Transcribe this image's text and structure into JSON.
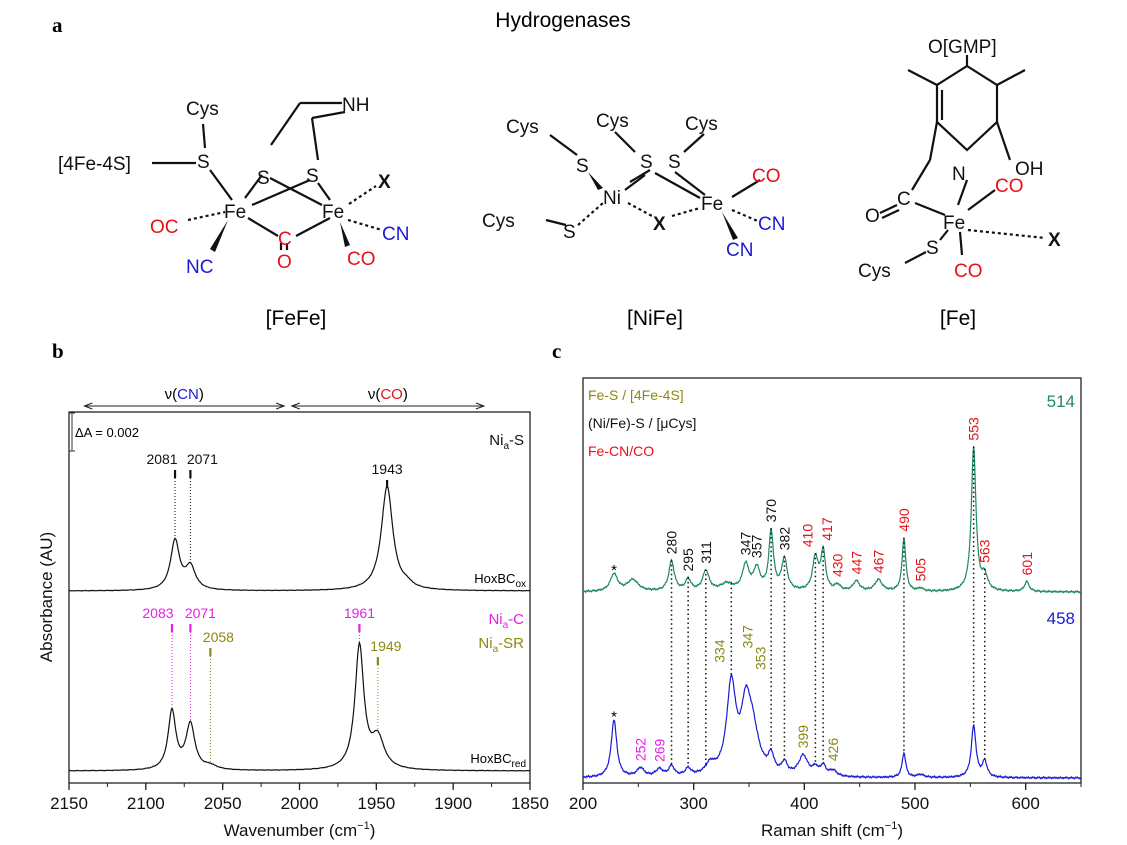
{
  "panel_a": {
    "label": "a",
    "title": "Hydrogenases",
    "fefe": {
      "name": "[FeFe]",
      "atoms": [
        "Cys",
        "S",
        "[4Fe-4S]",
        "S",
        "S",
        "NH",
        "Fe",
        "Fe",
        "OC",
        "NC",
        "C",
        "O",
        "X",
        "CN",
        "CO"
      ]
    },
    "nife": {
      "name": "[NiFe]",
      "atoms": [
        "Cys",
        "Cys",
        "Cys",
        "S",
        "S",
        "S",
        "Ni",
        "Fe",
        "X",
        "Cys",
        "S",
        "CO",
        "CN",
        "CN"
      ]
    },
    "fe": {
      "name": "[Fe]",
      "atoms": [
        "O[GMP]",
        "N",
        "OH",
        "C",
        "O",
        "Fe",
        "CO",
        "X",
        "S",
        "Cys",
        "CO"
      ]
    }
  },
  "chart_data": [
    {
      "panel_label": "b",
      "type": "line",
      "xlabel": "Wavenumber (cm",
      "xlabel_sup": "−1",
      "xlabel_end": ")",
      "ylabel": "Absorbance (AU)",
      "xlim": [
        2150,
        1850
      ],
      "x_reversed": true,
      "xticks": [
        2150,
        2100,
        2050,
        2000,
        1950,
        1900,
        1850
      ],
      "region_labels": [
        {
          "prefix": "ν(",
          "group": "CN",
          "suffix": ")",
          "color": "#1a1ad8",
          "range": [
            2140,
            2010
          ]
        },
        {
          "prefix": "ν(",
          "group": "CO",
          "suffix": ")",
          "color": "#e8101a",
          "range": [
            2005,
            1880
          ]
        }
      ],
      "scale_bar": "ΔA = 0.002",
      "scale_bar_value": 0.002,
      "series": [
        {
          "name": "HoxBC",
          "name_sub": "ox",
          "state_labels": [
            {
              "main": "Ni",
              "sub": "a",
              "rest": "-S",
              "color": "#111111"
            }
          ],
          "color": "#111111",
          "peaks": [
            {
              "x": 2081,
              "a": 0.0026,
              "fwhm": 7,
              "label": "2081",
              "label_color": "#111111"
            },
            {
              "x": 2071,
              "a": 0.0012,
              "fwhm": 8,
              "label": "2071",
              "label_color": "#111111"
            },
            {
              "x": 1943,
              "a": 0.0055,
              "fwhm": 9,
              "label": "1943",
              "label_color": "#111111"
            },
            {
              "x": 1930,
              "a": 0.0002,
              "fwhm": 8
            }
          ]
        },
        {
          "name": "HoxBC",
          "name_sub": "red",
          "state_labels": [
            {
              "main": "Ni",
              "sub": "a",
              "rest": "-C",
              "color": "#e81ee8"
            },
            {
              "main": "Ni",
              "sub": "a",
              "rest": "-SR",
              "color": "#8a8a12"
            }
          ],
          "color": "#111111",
          "peaks": [
            {
              "x": 2083,
              "a": 0.0031,
              "fwhm": 6,
              "label": "2083",
              "label_color": "#e81ee8"
            },
            {
              "x": 2071,
              "a": 0.0024,
              "fwhm": 7,
              "label": "2071",
              "label_color": "#e81ee8"
            },
            {
              "x": 2058,
              "a": 0.0002,
              "fwhm": 10,
              "label": "2058",
              "label_color": "#8a8a12"
            },
            {
              "x": 1961,
              "a": 0.0065,
              "fwhm": 7,
              "label": "1961",
              "label_color": "#e81ee8"
            },
            {
              "x": 1949,
              "a": 0.0016,
              "fwhm": 10,
              "label": "1949",
              "label_color": "#8a8a12"
            }
          ]
        }
      ]
    },
    {
      "panel_label": "c",
      "type": "line",
      "xlabel": "Raman shift (cm",
      "xlabel_sup": "−1",
      "xlabel_end": ")",
      "ylabel": "",
      "xlim": [
        200,
        650
      ],
      "xticks": [
        200,
        300,
        400,
        500,
        600
      ],
      "legend": [
        {
          "text": "Fe-S / [4Fe-4S]",
          "color": "#8a8a12"
        },
        {
          "text": "(Ni/Fe)-S / [μCys]",
          "color": "#111111"
        },
        {
          "text": "Fe-CN/CO",
          "color": "#e8101a"
        }
      ],
      "legend_placement": "top-left",
      "correlation_lines": [
        280,
        295,
        311,
        334,
        370,
        382,
        410,
        417,
        490,
        553,
        563
      ],
      "series": [
        {
          "name": "514",
          "color": "#1f8a5e",
          "peaks": [
            {
              "x": 228,
              "i": 0.12,
              "fwhm": 8,
              "label": "*",
              "label_color": "#111111"
            },
            {
              "x": 245,
              "i": 0.08,
              "fwhm": 12
            },
            {
              "x": 280,
              "i": 0.21,
              "fwhm": 6,
              "label": "280",
              "label_color": "#111111"
            },
            {
              "x": 295,
              "i": 0.08,
              "fwhm": 6,
              "label": "295",
              "label_color": "#111111"
            },
            {
              "x": 311,
              "i": 0.14,
              "fwhm": 7,
              "label": "311",
              "label_color": "#111111"
            },
            {
              "x": 330,
              "i": 0.05,
              "fwhm": 14
            },
            {
              "x": 347,
              "i": 0.18,
              "fwhm": 7,
              "label": "347",
              "label_color": "#111111"
            },
            {
              "x": 357,
              "i": 0.15,
              "fwhm": 7,
              "label": "357",
              "label_color": "#111111"
            },
            {
              "x": 370,
              "i": 0.41,
              "fwhm": 5,
              "label": "370",
              "label_color": "#111111"
            },
            {
              "x": 382,
              "i": 0.22,
              "fwhm": 6,
              "label": "382",
              "label_color": "#111111"
            },
            {
              "x": 410,
              "i": 0.23,
              "fwhm": 6,
              "label": "410",
              "label_color": "#e8101a"
            },
            {
              "x": 417,
              "i": 0.27,
              "fwhm": 5,
              "label": "417",
              "label_color": "#e8101a"
            },
            {
              "x": 430,
              "i": 0.04,
              "fwhm": 6,
              "label": "430",
              "label_color": "#e8101a"
            },
            {
              "x": 447,
              "i": 0.07,
              "fwhm": 7,
              "label": "447",
              "label_color": "#e8101a"
            },
            {
              "x": 467,
              "i": 0.08,
              "fwhm": 8,
              "label": "467",
              "label_color": "#e8101a"
            },
            {
              "x": 490,
              "i": 0.37,
              "fwhm": 4,
              "label": "490",
              "label_color": "#e8101a"
            },
            {
              "x": 505,
              "i": 0.02,
              "fwhm": 6,
              "label": "505",
              "label_color": "#e8101a"
            },
            {
              "x": 553,
              "i": 1.0,
              "fwhm": 5,
              "label": "553",
              "label_color": "#e8101a"
            },
            {
              "x": 563,
              "i": 0.1,
              "fwhm": 6,
              "label": "563",
              "label_color": "#e8101a"
            },
            {
              "x": 601,
              "i": 0.07,
              "fwhm": 5,
              "label": "601",
              "label_color": "#e8101a"
            }
          ]
        },
        {
          "name": "458",
          "color": "#1a1ad8",
          "peaks": [
            {
              "x": 228,
              "i": 0.4,
              "fwhm": 6,
              "label": "*",
              "label_color": "#111111"
            },
            {
              "x": 252,
              "i": 0.06,
              "fwhm": 8,
              "label": "252",
              "label_color": "#e81ee8"
            },
            {
              "x": 269,
              "i": 0.05,
              "fwhm": 8,
              "label": "269",
              "label_color": "#e81ee8"
            },
            {
              "x": 280,
              "i": 0.07,
              "fwhm": 6
            },
            {
              "x": 295,
              "i": 0.05,
              "fwhm": 6
            },
            {
              "x": 315,
              "i": 0.07,
              "fwhm": 10
            },
            {
              "x": 334,
              "i": 0.62,
              "fwhm": 10,
              "label": "334",
              "label_color": "#8a8a12"
            },
            {
              "x": 347,
              "i": 0.38,
              "fwhm": 10,
              "label": "347",
              "label_color": "#8a8a12"
            },
            {
              "x": 353,
              "i": 0.3,
              "fwhm": 14,
              "label": "353",
              "label_color": "#8a8a12"
            },
            {
              "x": 370,
              "i": 0.12,
              "fwhm": 6
            },
            {
              "x": 382,
              "i": 0.08,
              "fwhm": 6
            },
            {
              "x": 399,
              "i": 0.14,
              "fwhm": 10,
              "label": "399",
              "label_color": "#8a8a12"
            },
            {
              "x": 410,
              "i": 0.05,
              "fwhm": 6
            },
            {
              "x": 417,
              "i": 0.07,
              "fwhm": 6
            },
            {
              "x": 426,
              "i": 0.04,
              "fwhm": 8,
              "label": "426",
              "label_color": "#8a8a12"
            },
            {
              "x": 490,
              "i": 0.17,
              "fwhm": 4
            },
            {
              "x": 505,
              "i": 0.02,
              "fwhm": 8
            },
            {
              "x": 553,
              "i": 0.36,
              "fwhm": 5
            },
            {
              "x": 563,
              "i": 0.11,
              "fwhm": 5
            }
          ]
        }
      ]
    }
  ]
}
